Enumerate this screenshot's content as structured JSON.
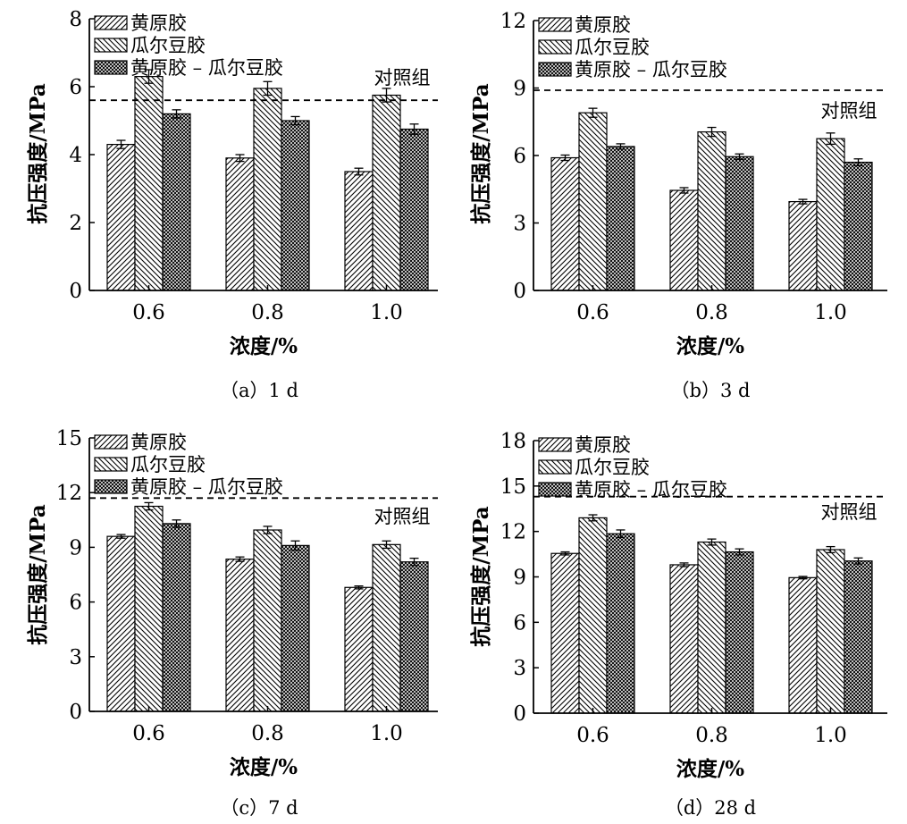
{
  "legend_names": [
    "黄原胶",
    "瓜尔豆胶",
    "黄原胶 – 瓜尔豆胶"
  ],
  "control_label": "对照组",
  "chart_data": [
    {
      "type": "bar",
      "caption": "（a）1 d",
      "xlabel": "浓度/%",
      "ylabel": "抗压强度/MPa",
      "categories": [
        "0.6",
        "0.8",
        "1.0"
      ],
      "ylim": [
        0,
        8
      ],
      "yticks": [
        0,
        2,
        4,
        6,
        8
      ],
      "control_value": 5.6,
      "series": [
        {
          "name": "黄原胶",
          "values": [
            4.3,
            3.9,
            3.5
          ],
          "errors": [
            0.12,
            0.1,
            0.1
          ]
        },
        {
          "name": "瓜尔豆胶",
          "values": [
            6.3,
            5.95,
            5.75
          ],
          "errors": [
            0.2,
            0.2,
            0.2
          ]
        },
        {
          "name": "黄原胶 – 瓜尔豆胶",
          "values": [
            5.2,
            5.0,
            4.75
          ],
          "errors": [
            0.12,
            0.12,
            0.15
          ]
        }
      ]
    },
    {
      "type": "bar",
      "caption": "（b）3 d",
      "xlabel": "浓度/%",
      "ylabel": "抗压强度/MPa",
      "categories": [
        "0.6",
        "0.8",
        "1.0"
      ],
      "ylim": [
        0,
        12
      ],
      "yticks": [
        0,
        3,
        6,
        9,
        12
      ],
      "control_value": 8.9,
      "series": [
        {
          "name": "黄原胶",
          "values": [
            5.9,
            4.45,
            3.95
          ],
          "errors": [
            0.12,
            0.12,
            0.1
          ]
        },
        {
          "name": "瓜尔豆胶",
          "values": [
            7.9,
            7.05,
            6.75
          ],
          "errors": [
            0.2,
            0.2,
            0.25
          ]
        },
        {
          "name": "黄原胶 – 瓜尔豆胶",
          "values": [
            6.4,
            5.95,
            5.7
          ],
          "errors": [
            0.12,
            0.12,
            0.15
          ]
        }
      ]
    },
    {
      "type": "bar",
      "caption": "（c）7 d",
      "xlabel": "浓度/%",
      "ylabel": "抗压强度/MPa",
      "categories": [
        "0.6",
        "0.8",
        "1.0"
      ],
      "ylim": [
        0,
        15
      ],
      "yticks": [
        0,
        3,
        6,
        9,
        12,
        15
      ],
      "control_value": 11.7,
      "series": [
        {
          "name": "黄原胶",
          "values": [
            9.6,
            8.35,
            6.8
          ],
          "errors": [
            0.1,
            0.12,
            0.08
          ]
        },
        {
          "name": "瓜尔豆胶",
          "values": [
            11.25,
            9.95,
            9.15
          ],
          "errors": [
            0.2,
            0.2,
            0.2
          ]
        },
        {
          "name": "黄原胶 – 瓜尔豆胶",
          "values": [
            10.3,
            9.1,
            8.2
          ],
          "errors": [
            0.2,
            0.25,
            0.2
          ]
        }
      ]
    },
    {
      "type": "bar",
      "caption": "（d）28 d",
      "xlabel": "浓度/%",
      "ylabel": "抗压强度/MPa",
      "categories": [
        "0.6",
        "0.8",
        "1.0"
      ],
      "ylim": [
        0,
        18
      ],
      "yticks": [
        0,
        3,
        6,
        9,
        12,
        15,
        18
      ],
      "control_value": 14.3,
      "series": [
        {
          "name": "黄原胶",
          "values": [
            10.55,
            9.8,
            8.95
          ],
          "errors": [
            0.1,
            0.12,
            0.08
          ]
        },
        {
          "name": "瓜尔豆胶",
          "values": [
            12.9,
            11.3,
            10.8
          ],
          "errors": [
            0.2,
            0.2,
            0.2
          ]
        },
        {
          "name": "黄原胶 – 瓜尔豆胶",
          "values": [
            11.85,
            10.65,
            10.05
          ],
          "errors": [
            0.25,
            0.2,
            0.2
          ]
        }
      ]
    }
  ]
}
